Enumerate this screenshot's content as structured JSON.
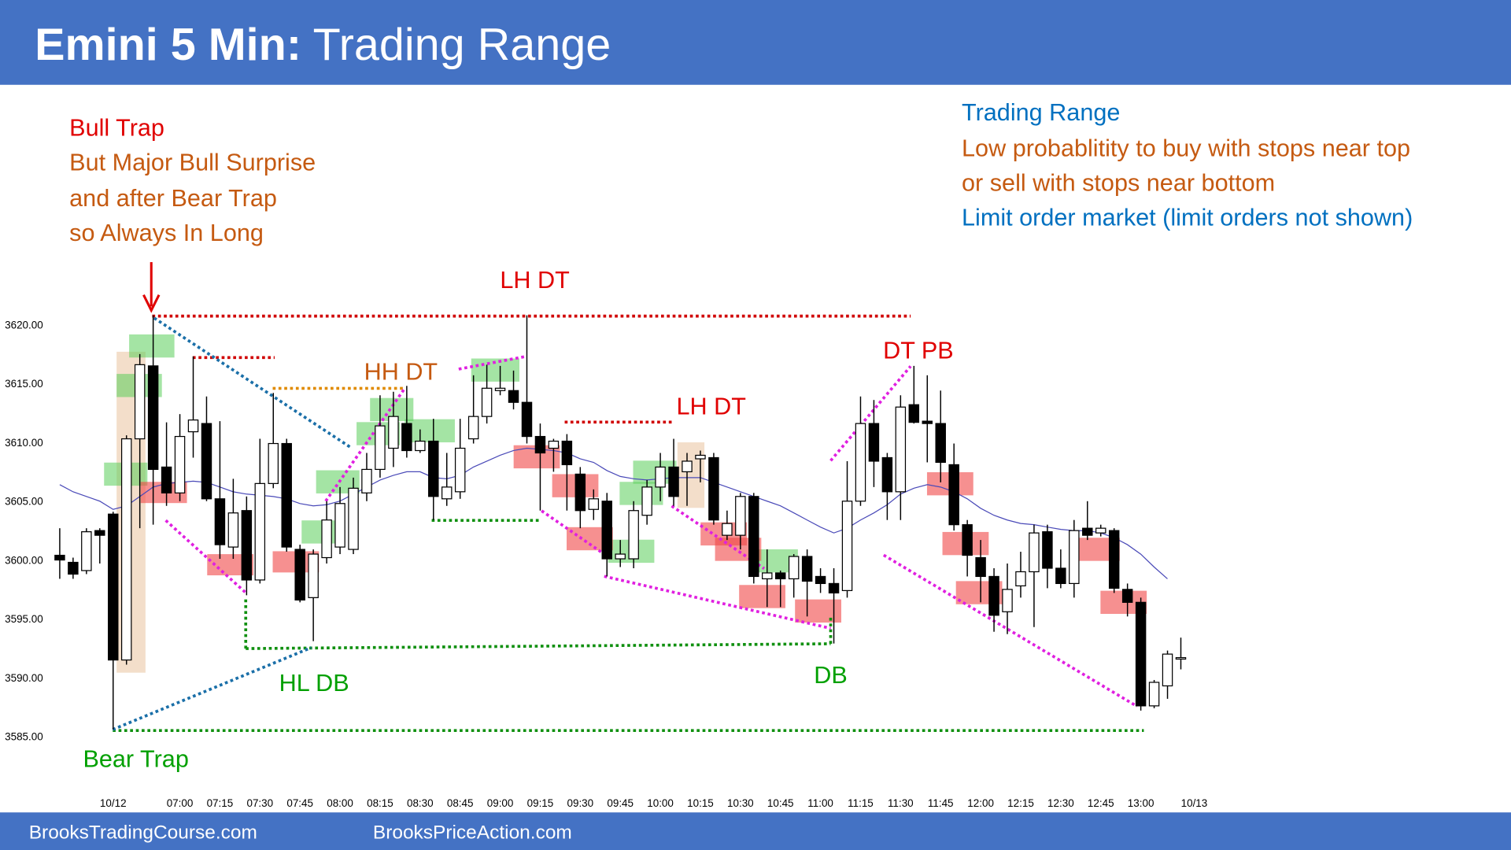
{
  "chart_data": {
    "type": "candlestick",
    "title": "Emini 5 Min:",
    "subtitle": "Trading Range",
    "categories": [
      null,
      null,
      null,
      null,
      null,
      "10/12",
      null,
      null,
      null,
      null,
      "07:00",
      null,
      null,
      "07:15",
      null,
      null,
      "07:30",
      null,
      null,
      "07:45",
      null,
      null,
      "08:00",
      null,
      null,
      "08:15",
      null,
      null,
      "08:30",
      null,
      null,
      "08:45",
      null,
      null,
      "09:00",
      null,
      null,
      "09:15",
      null,
      null,
      "09:30",
      null,
      null,
      "09:45",
      null,
      null,
      "10:00",
      null,
      null,
      "10:15",
      null,
      null,
      "10:30",
      null,
      null,
      "10:45",
      null,
      null,
      "11:00",
      null,
      null,
      "11:15",
      null,
      null,
      "11:30",
      null,
      null,
      "11:45",
      null,
      null,
      "12:00",
      null,
      null,
      "12:15",
      null,
      null,
      "12:30",
      null,
      null,
      "12:45",
      null,
      null,
      "13:00",
      null,
      null,
      null,
      "10/13"
    ],
    "open": [
      3600.4,
      3599.8,
      3599.1,
      3602.5,
      3603.9,
      3591.5,
      3610.3,
      3616.5,
      3607.9,
      3605.7,
      3610.9,
      3611.6,
      3605.2,
      3601.1,
      3604.2,
      3598.3,
      3606.5,
      3609.9,
      3600.9,
      3596.8,
      3600.2,
      3601.1,
      3600.9,
      3605.7,
      3607.7,
      3609.5,
      3611.6,
      3609.3,
      3610.1,
      3605.2,
      3605.8,
      3610.3,
      3612.2,
      3614.4,
      3614.4,
      3613.4,
      3610.5,
      3609.5,
      3610.1,
      3607.3,
      3604.3,
      3605.0,
      3600.1,
      3600.1,
      3603.8,
      3606.2,
      3607.9,
      3607.5,
      3608.6,
      3608.7,
      3602.1,
      3602.1,
      3605.4,
      3598.4,
      3598.9,
      3598.4,
      3600.3,
      3598.6,
      3598.0,
      3597.4,
      3605.0,
      3611.6,
      3608.7,
      3605.8,
      3613.2,
      3611.8,
      3611.6,
      3608.1,
      3603.0,
      3600.2,
      3598.6,
      3595.6,
      3597.8,
      3599.0,
      3602.4,
      3599.3,
      3598.0,
      3602.7,
      3602.3,
      3602.5,
      3597.5,
      3596.4,
      3587.6,
      3589.3,
      3591.7,
      null,
      null
    ],
    "high": [
      3602.7,
      3600.2,
      3602.7,
      3602.7,
      3604.1,
      3610.6,
      3617.5,
      3620.8,
      3611.7,
      3612.4,
      3617.3,
      3613.9,
      3611.8,
      3606.9,
      3605.4,
      3610.3,
      3614.2,
      3610.3,
      3601.3,
      3600.9,
      3605.0,
      3606.2,
      3607.0,
      3609.1,
      3614.0,
      3614.3,
      3614.8,
      3611.1,
      3612.0,
      3609.1,
      3612.0,
      3615.7,
      3616.6,
      3616.5,
      3616.1,
      3620.8,
      3611.6,
      3610.3,
      3610.7,
      3607.9,
      3606.0,
      3605.7,
      3601.7,
      3605.0,
      3606.8,
      3609.1,
      3610.3,
      3609.1,
      3609.3,
      3609.1,
      3604.2,
      3605.7,
      3605.7,
      3600.9,
      3599.1,
      3600.5,
      3600.9,
      3599.3,
      3599.3,
      3608.4,
      3613.9,
      3613.6,
      3609.1,
      3614.0,
      3616.5,
      3615.7,
      3614.4,
      3609.9,
      3603.4,
      3601.7,
      3599.3,
      3599.7,
      3600.7,
      3603.0,
      3603.0,
      3600.9,
      3603.4,
      3605.0,
      3603.0,
      3602.7,
      3598.0,
      3596.8,
      3589.8,
      3592.3,
      3593.4,
      null,
      null
    ],
    "low": [
      3598.4,
      3598.4,
      3598.8,
      3599.7,
      3585.6,
      3591.1,
      3602.7,
      3603.0,
      3604.6,
      3605.0,
      3608.7,
      3605.0,
      3600.1,
      3600.1,
      3597.0,
      3598.0,
      3606.1,
      3600.7,
      3596.4,
      3593.1,
      3599.7,
      3600.5,
      3600.5,
      3605.0,
      3607.0,
      3607.9,
      3608.7,
      3609.1,
      3603.4,
      3604.6,
      3605.2,
      3609.9,
      3611.6,
      3614.0,
      3612.8,
      3609.9,
      3604.2,
      3607.5,
      3604.2,
      3602.7,
      3603.4,
      3598.6,
      3599.4,
      3599.3,
      3603.0,
      3605.0,
      3604.6,
      3604.6,
      3606.6,
      3603.0,
      3601.7,
      3600.9,
      3598.0,
      3596.0,
      3596.0,
      3596.8,
      3595.2,
      3597.2,
      3592.9,
      3596.8,
      3604.6,
      3606.2,
      3603.4,
      3603.4,
      3611.6,
      3608.3,
      3606.6,
      3602.5,
      3598.6,
      3596.4,
      3593.9,
      3593.7,
      3596.8,
      3594.3,
      3597.6,
      3597.6,
      3596.8,
      3601.7,
      3602.0,
      3597.2,
      3595.2,
      3587.2,
      3587.4,
      3588.2,
      3590.7,
      null,
      null
    ],
    "close": [
      3600.0,
      3598.8,
      3602.4,
      3602.1,
      3591.5,
      3610.3,
      3616.6,
      3607.7,
      3605.7,
      3610.5,
      3611.9,
      3605.2,
      3601.3,
      3604.0,
      3598.3,
      3606.5,
      3609.9,
      3601.1,
      3596.6,
      3600.5,
      3603.4,
      3604.8,
      3606.1,
      3607.7,
      3611.4,
      3612.2,
      3609.3,
      3610.1,
      3605.4,
      3606.2,
      3609.5,
      3612.2,
      3614.6,
      3614.6,
      3613.4,
      3610.5,
      3609.1,
      3610.1,
      3608.1,
      3604.2,
      3605.2,
      3600.1,
      3600.5,
      3604.2,
      3606.2,
      3607.9,
      3605.4,
      3608.4,
      3608.9,
      3603.4,
      3603.1,
      3605.4,
      3598.6,
      3598.9,
      3598.4,
      3600.3,
      3598.2,
      3598.0,
      3597.2,
      3605.0,
      3611.6,
      3608.4,
      3605.8,
      3613.0,
      3611.7,
      3611.6,
      3608.3,
      3603.0,
      3600.4,
      3598.6,
      3595.3,
      3597.5,
      3599.0,
      3602.3,
      3599.3,
      3598.0,
      3602.5,
      3602.1,
      3602.7,
      3597.6,
      3596.4,
      3587.6,
      3589.6,
      3592.0,
      3591.7,
      null,
      null
    ],
    "ema": [
      3606.4,
      3605.8,
      3605.4,
      3605.0,
      3604.3,
      3604.6,
      3605.4,
      3606.2,
      3606.5,
      3606.6,
      3606.7,
      3606.6,
      3606.2,
      3605.8,
      3605.6,
      3605.5,
      3605.4,
      3605.2,
      3604.8,
      3604.6,
      3604.7,
      3605.0,
      3605.6,
      3606.2,
      3606.8,
      3607.2,
      3607.5,
      3607.5,
      3607.0,
      3606.9,
      3607.2,
      3607.9,
      3608.4,
      3608.9,
      3609.3,
      3609.5,
      3609.4,
      3609.3,
      3609.1,
      3608.6,
      3608.3,
      3607.6,
      3607.1,
      3606.9,
      3606.8,
      3606.9,
      3607.0,
      3607.0,
      3607.0,
      3606.6,
      3606.2,
      3605.8,
      3605.4,
      3605.0,
      3604.6,
      3604.0,
      3603.4,
      3602.8,
      3602.3,
      3602.7,
      3603.4,
      3604.0,
      3604.7,
      3605.6,
      3606.1,
      3606.4,
      3606.2,
      3605.8,
      3605.2,
      3604.4,
      3603.8,
      3603.4,
      3603.1,
      3603.0,
      3602.8,
      3602.6,
      3602.5,
      3602.5,
      3602.3,
      3601.9,
      3601.3,
      3600.5,
      3599.4,
      3598.4,
      null,
      null,
      null
    ],
    "up_color": "#ffffff",
    "down_color": "#000000",
    "ema_color": "#4a4ab8",
    "ylim": [
      3581,
      3639
    ],
    "yticks": [
      {
        "value": 3585,
        "label": "3585.00"
      },
      {
        "value": 3590,
        "label": "3590.00"
      },
      {
        "value": 3595,
        "label": "3595.00"
      },
      {
        "value": 3600,
        "label": "3600.00"
      },
      {
        "value": 3605,
        "label": "3605.00"
      },
      {
        "value": 3610,
        "label": "3610.00"
      },
      {
        "value": 3615,
        "label": "3615.00"
      },
      {
        "value": 3620,
        "label": "3620.00"
      }
    ],
    "annotations": [
      "Bull Trap",
      "But Major Bull Surprise",
      "and after Bear Trap",
      "so Always In Long",
      "Trading Range",
      "Low probablitity to buy with stops near top",
      "or sell with stops near bottom",
      "Limit order market (limit orders not shown)",
      "LH DT",
      "HH DT",
      "LH DT",
      "DT PB",
      "HL DB",
      "DB",
      "Bear Trap"
    ]
  },
  "footer": [
    "BrooksTradingCourse.com",
    "BrooksPriceAction.com"
  ]
}
